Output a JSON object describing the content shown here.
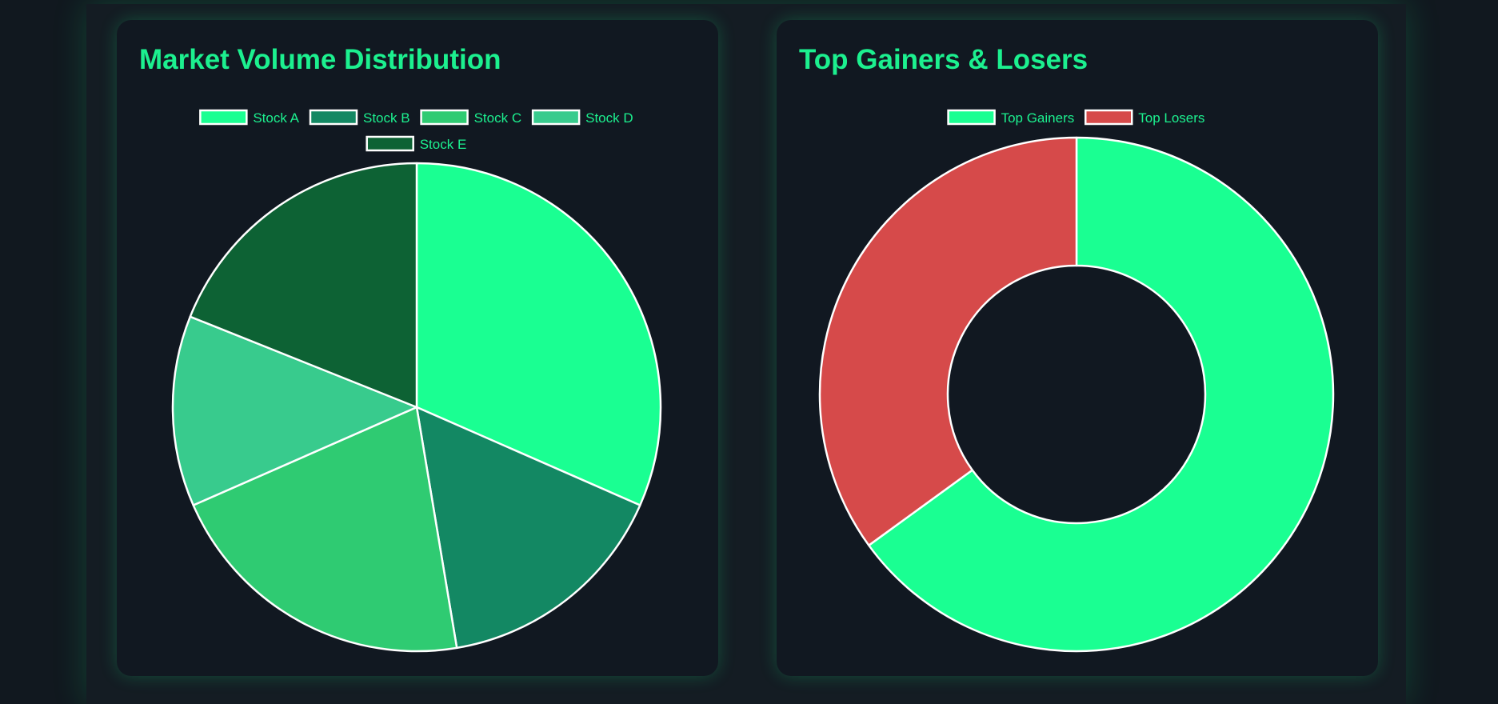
{
  "colors": {
    "accent": "#1cf08f",
    "background": "#11181f",
    "card": "#111821",
    "slice_border": "#ffffff"
  },
  "cards": [
    {
      "title": "Market Volume Distribution"
    },
    {
      "title": "Top Gainers & Losers"
    }
  ],
  "chart_data": [
    {
      "type": "pie",
      "title": "Market Volume Distribution",
      "legend_position": "top",
      "labels": [
        "Stock A",
        "Stock B",
        "Stock C",
        "Stock D",
        "Stock E"
      ],
      "values": [
        30,
        15,
        20,
        12,
        18
      ],
      "colors": [
        "#1aff92",
        "#138863",
        "#2fcb72",
        "#38cb8d",
        "#0d6234"
      ]
    },
    {
      "type": "doughnut",
      "title": "Top Gainers & Losers",
      "legend_position": "top",
      "labels": [
        "Top Gainers",
        "Top Losers"
      ],
      "values": [
        65,
        35
      ],
      "colors": [
        "#1aff92",
        "#d64a4a"
      ]
    }
  ]
}
